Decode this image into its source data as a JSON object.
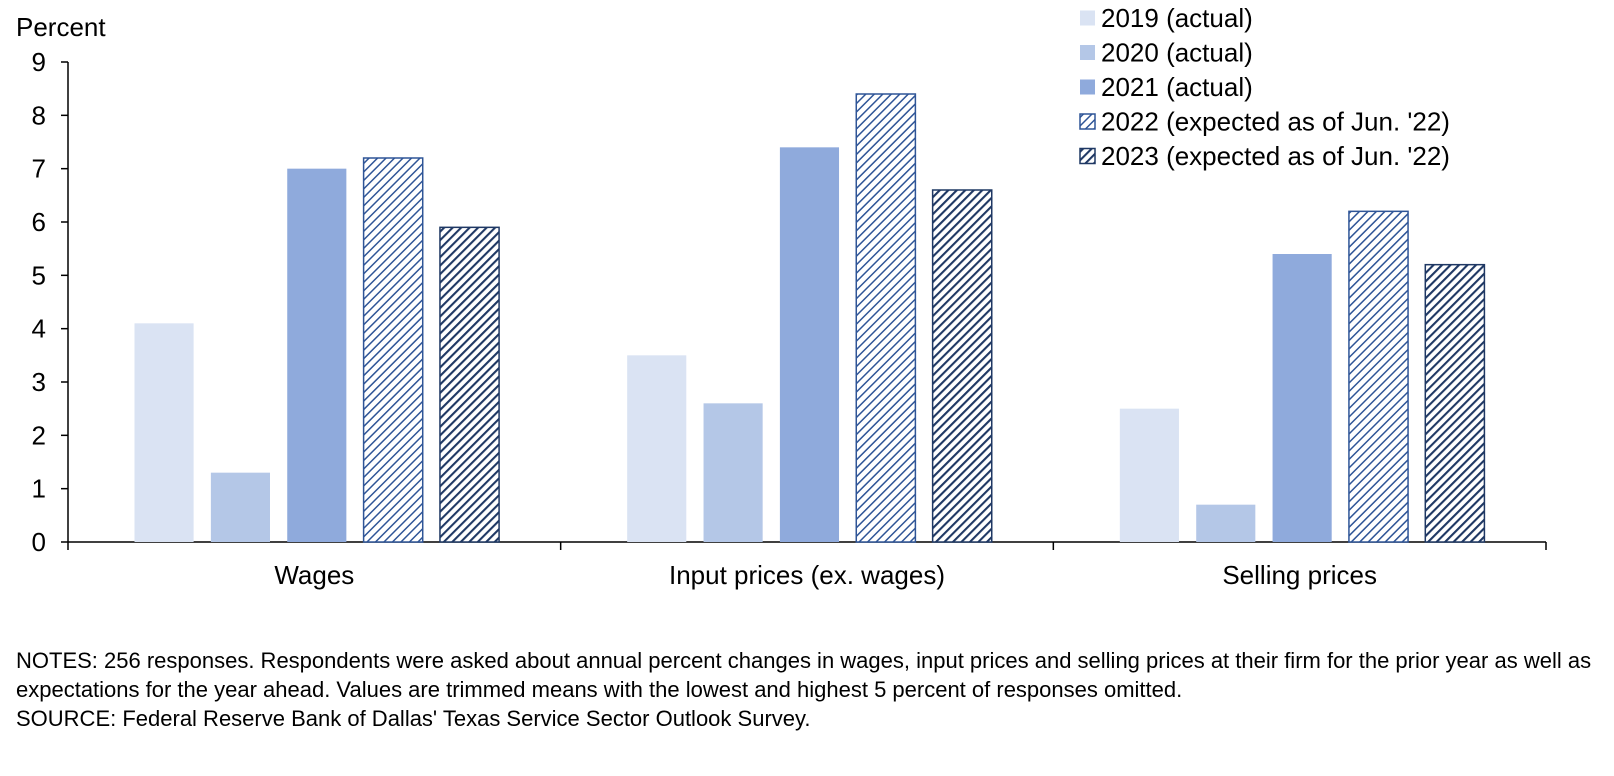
{
  "chart_data": {
    "type": "bar",
    "ylabel": "Percent",
    "ylim": [
      0,
      9
    ],
    "yticks": [
      "0",
      "1",
      "2",
      "3",
      "4",
      "5",
      "6",
      "7",
      "8",
      "9"
    ],
    "categories": [
      "Wages",
      "Input prices (ex. wages)",
      "Selling prices"
    ],
    "series": [
      {
        "name": "2019 (actual)",
        "values": [
          4.1,
          3.5,
          2.5
        ],
        "color": "#dae3f3",
        "pattern": "solid"
      },
      {
        "name": "2020 (actual)",
        "values": [
          1.3,
          2.6,
          0.7
        ],
        "color": "#b4c7e7",
        "pattern": "solid"
      },
      {
        "name": "2021 (actual)",
        "values": [
          7.0,
          7.4,
          5.4
        ],
        "color": "#8faadc",
        "pattern": "solid"
      },
      {
        "name": "2022 (expected as of Jun. '22)",
        "values": [
          7.2,
          8.4,
          6.2
        ],
        "color": "#2f5597",
        "pattern": "hatch-light"
      },
      {
        "name": "2023 (expected as of Jun. '22)",
        "values": [
          5.9,
          6.6,
          5.2
        ],
        "color": "#1f3864",
        "pattern": "hatch-dark"
      }
    ],
    "legend_position": "top-right",
    "grid": false
  },
  "notes": {
    "notes_text": "NOTES: 256 responses. Respondents were asked about annual percent changes in wages, input prices and selling prices at their firm for the prior year as well as expectations for the year ahead. Values are trimmed means with the lowest and highest 5 percent of responses omitted.",
    "source_text": "SOURCE: Federal Reserve Bank of Dallas' Texas Service Sector Outlook Survey."
  }
}
